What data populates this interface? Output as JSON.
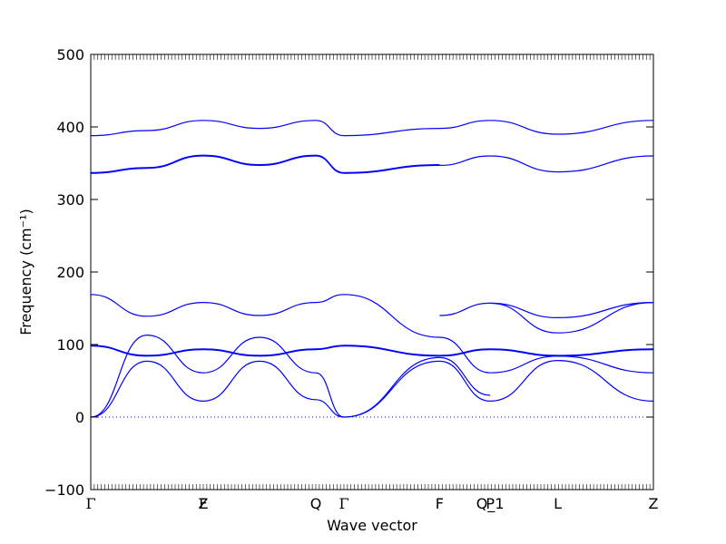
{
  "chart_data": {
    "type": "line",
    "title": "",
    "xlabel": "Wave vector",
    "ylabel": "Frequency (cm⁻¹)",
    "ylim": [
      -100,
      500
    ],
    "yticks": [
      -100,
      0,
      100,
      200,
      300,
      400,
      500
    ],
    "xlim": [
      0,
      5
    ],
    "grid": false,
    "series_color": "#0000ff",
    "zero_line_color": "#0000ff",
    "high_symmetry_points": [
      {
        "label": "Γ",
        "x": 0
      },
      {
        "label": "F",
        "x": 1
      },
      {
        "label": "Z",
        "x": 1
      },
      {
        "label": "Q",
        "x": 2.0
      },
      {
        "label": "Γ",
        "x": 2.25
      },
      {
        "label": "F",
        "x": 3.1
      },
      {
        "label": "P",
        "x": 3.55
      },
      {
        "label": "Q_1",
        "x": 3.55
      },
      {
        "label": "L",
        "x": 4.15
      },
      {
        "label": "Z",
        "x": 5
      }
    ],
    "segments": [
      {
        "from": "Γ",
        "to": "Z",
        "x": [
          0,
          0.5,
          1.0
        ],
        "bands": [
          [
            0,
            77,
            22
          ],
          [
            0,
            113,
            61
          ],
          [
            98,
            84,
            93
          ],
          [
            99,
            85,
            94
          ],
          [
            169,
            139,
            158
          ],
          [
            336,
            343,
            360
          ],
          [
            337,
            344,
            361
          ],
          [
            388,
            395,
            409
          ]
        ]
      },
      {
        "from": "Z",
        "x": [
          1.0,
          1.5,
          2.0,
          2.25
        ],
        "bands": [
          [
            22,
            77,
            24,
            0
          ],
          [
            61,
            110,
            61,
            0
          ],
          [
            93,
            84,
            93,
            98
          ],
          [
            94,
            85,
            94,
            99
          ],
          [
            158,
            140,
            158,
            169
          ],
          [
            360,
            347,
            360,
            336
          ],
          [
            361,
            348,
            361,
            337
          ],
          [
            409,
            398,
            409,
            388
          ]
        ]
      },
      {
        "from": "Γ",
        "to": "F",
        "x": [
          2.25,
          3.1
        ],
        "bands": [
          [
            0,
            77
          ],
          [
            0,
            82
          ],
          [
            98,
            84
          ],
          [
            99,
            85
          ],
          [
            169,
            110
          ],
          [
            336,
            347
          ],
          [
            337,
            348
          ],
          [
            388,
            398
          ]
        ]
      },
      {
        "from": "F",
        "to": "Q_1",
        "x": [
          3.1,
          3.55
        ],
        "bands": [
          [
            77,
            22
          ],
          [
            82,
            30
          ],
          [
            84,
            93
          ],
          [
            85,
            94
          ],
          [
            110,
            61
          ],
          [
            140,
            157
          ],
          [
            347,
            360
          ],
          [
            398,
            409
          ]
        ]
      },
      {
        "from": "Q_1",
        "to": "L",
        "x": [
          3.55,
          4.15
        ],
        "bands": [
          [
            22,
            78
          ],
          [
            61,
            84
          ],
          [
            93,
            84
          ],
          [
            94,
            85
          ],
          [
            157,
            116
          ],
          [
            157,
            137
          ],
          [
            360,
            338
          ],
          [
            409,
            390
          ]
        ]
      },
      {
        "from": "L",
        "to": "Z",
        "x": [
          4.15,
          5.0
        ],
        "bands": [
          [
            78,
            22
          ],
          [
            84,
            61
          ],
          [
            84,
            93
          ],
          [
            85,
            94
          ],
          [
            116,
            158
          ],
          [
            137,
            158
          ],
          [
            338,
            360
          ],
          [
            390,
            409
          ]
        ]
      }
    ]
  }
}
